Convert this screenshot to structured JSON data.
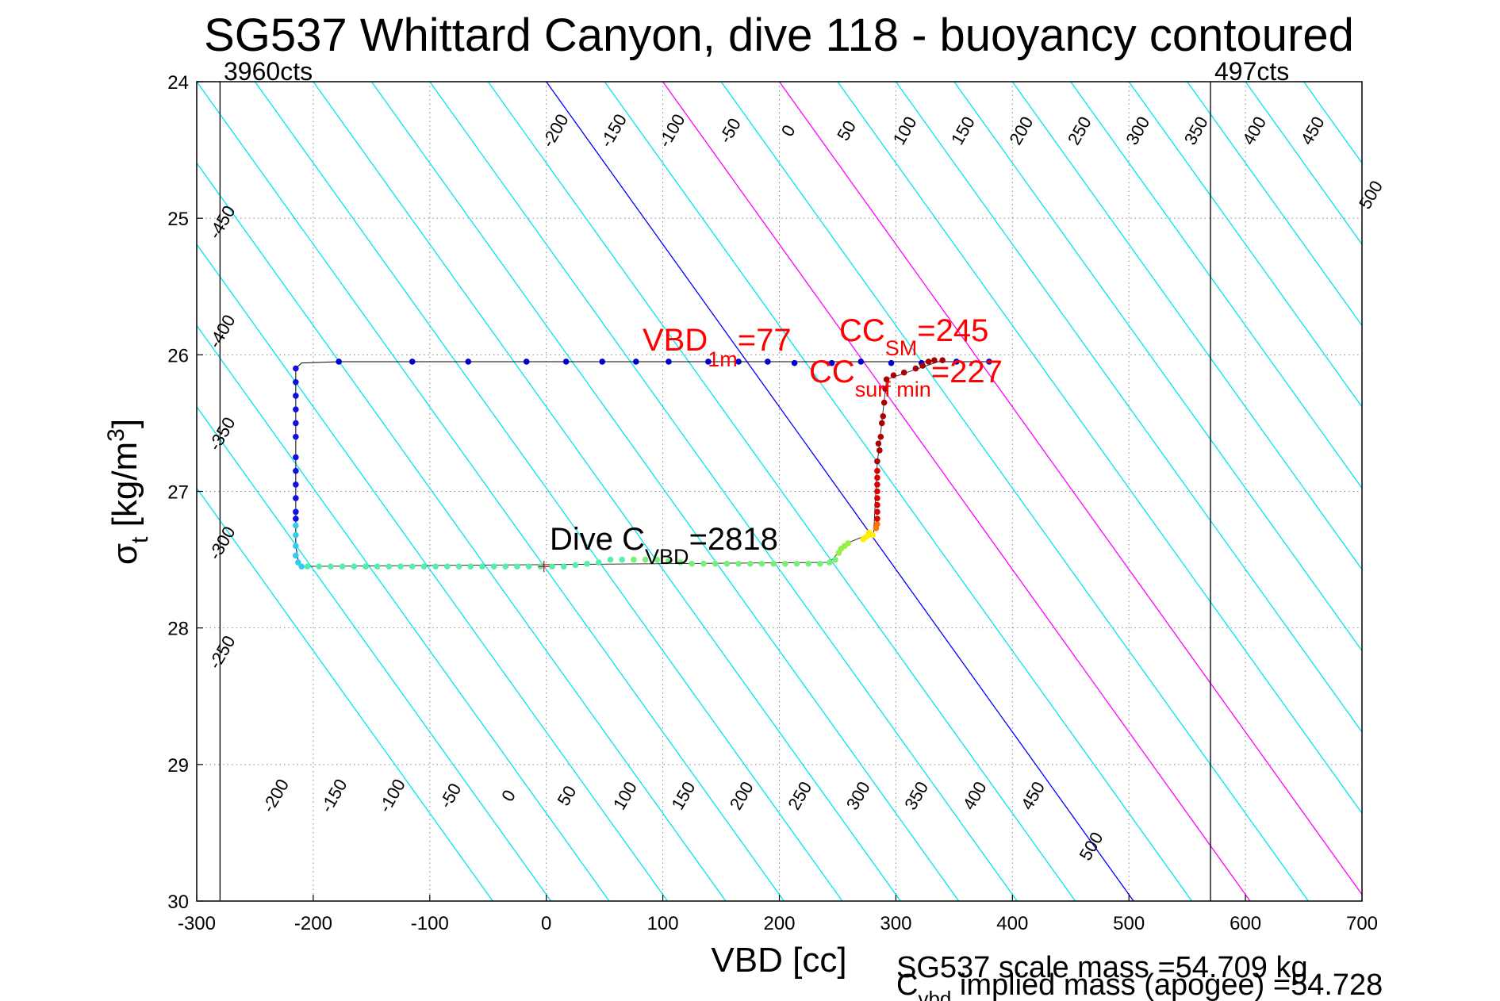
{
  "chart_data": {
    "type": "scatter",
    "title": "SG537 Whittard Canyon, dive 118 - buoyancy contoured",
    "xlabel": "VBD [cc]",
    "ylabel": {
      "main": "σ",
      "sub": "t",
      "units_pre": " [kg/m",
      "units_sup": "3",
      "units_post": "]"
    },
    "xlim": [
      -300,
      700
    ],
    "ylim": [
      24,
      30
    ],
    "y_reversed": true,
    "grid": true,
    "x_ticks": [
      "-300",
      "-200",
      "-100",
      "0",
      "100",
      "200",
      "300",
      "400",
      "500",
      "600",
      "700"
    ],
    "y_ticks": [
      "24",
      "25",
      "26",
      "27",
      "28",
      "29",
      "30"
    ],
    "counts": [
      {
        "label": "3960cts",
        "x": -280
      },
      {
        "label": "497cts",
        "x": 570
      }
    ],
    "contours": {
      "levels_top": [
        "-200",
        "-150",
        "-100",
        "-50",
        "0",
        "50",
        "100",
        "150",
        "200",
        "250",
        "300",
        "350",
        "400",
        "450",
        "500"
      ],
      "levels_left": [
        "-450",
        "-400",
        "-350",
        "-300",
        "-250"
      ],
      "levels_bottom": [
        "-200",
        "-150",
        "-100",
        "-50",
        "0",
        "50",
        "100",
        "150",
        "200",
        "250",
        "300",
        "350",
        "400",
        "450",
        "500"
      ],
      "color_default": "#00e5ee",
      "color_zero": "#0000ff",
      "color_cc": "#ff00ff"
    },
    "annotations": {
      "vbd1m": {
        "main": "VBD",
        "sub": "1m",
        "tail": "=77"
      },
      "ccsm": {
        "main": "CC",
        "sub": "SM",
        "tail": "=245"
      },
      "ccsurf": {
        "main": "CC",
        "sub": "surf min",
        "tail": "=227"
      },
      "divec": {
        "main": "Dive C",
        "sub": "VBD",
        "tail": "=2818"
      }
    },
    "footer": {
      "line1": "SG537 scale mass =54.709 kg",
      "line2_main": "C",
      "line2_sub": "vbd",
      "line2_tail": " implied mass (apogee) =54.728"
    },
    "series": [
      {
        "color": "#0000cc",
        "points": [
          [
            -178,
            26.05
          ],
          [
            -115,
            26.05
          ],
          [
            -67,
            26.05
          ],
          [
            -17,
            26.05
          ],
          [
            17,
            26.05
          ],
          [
            48,
            26.05
          ],
          [
            77,
            26.05
          ],
          [
            105,
            26.05
          ],
          [
            139,
            26.05
          ],
          [
            165,
            26.05
          ],
          [
            190,
            26.05
          ],
          [
            213,
            26.06
          ],
          [
            245,
            26.06
          ],
          [
            270,
            26.05
          ],
          [
            296,
            26.06
          ],
          [
            322,
            26.06
          ],
          [
            352,
            26.05
          ],
          [
            380,
            26.05
          ]
        ]
      },
      {
        "color": "#1010e0",
        "points": [
          [
            -215,
            26.1
          ],
          [
            -215,
            26.2
          ],
          [
            -215,
            26.3
          ],
          [
            -215,
            26.4
          ],
          [
            -215,
            26.5
          ],
          [
            -215,
            26.6
          ],
          [
            -215,
            26.75
          ],
          [
            -215,
            26.85
          ],
          [
            -215,
            26.95
          ],
          [
            -215,
            27.05
          ],
          [
            -215,
            27.15
          ],
          [
            -215,
            27.2
          ]
        ]
      },
      {
        "color": "#33ccee",
        "points": [
          [
            -215,
            27.25
          ],
          [
            -215,
            27.32
          ],
          [
            -215,
            27.4
          ],
          [
            -215,
            27.47
          ],
          [
            -213,
            27.52
          ],
          [
            -210,
            27.55
          ]
        ]
      },
      {
        "color": "#55eeaa",
        "points": [
          [
            -205,
            27.55
          ],
          [
            -195,
            27.55
          ],
          [
            -185,
            27.55
          ],
          [
            -175,
            27.55
          ],
          [
            -165,
            27.55
          ],
          [
            -155,
            27.55
          ],
          [
            -145,
            27.55
          ],
          [
            -135,
            27.55
          ],
          [
            -125,
            27.55
          ],
          [
            -115,
            27.55
          ],
          [
            -105,
            27.55
          ],
          [
            -95,
            27.55
          ],
          [
            -85,
            27.55
          ],
          [
            -75,
            27.55
          ],
          [
            -65,
            27.55
          ],
          [
            -55,
            27.55
          ],
          [
            -45,
            27.55
          ],
          [
            -35,
            27.55
          ],
          [
            -25,
            27.55
          ],
          [
            -15,
            27.55
          ],
          [
            -5,
            27.55
          ],
          [
            5,
            27.55
          ],
          [
            15,
            27.55
          ],
          [
            25,
            27.54
          ],
          [
            35,
            27.53
          ],
          [
            45,
            27.52
          ],
          [
            55,
            27.5
          ],
          [
            65,
            27.5
          ]
        ]
      },
      {
        "color": "#77ee77",
        "points": [
          [
            75,
            27.5
          ],
          [
            85,
            27.5
          ],
          [
            95,
            27.5
          ],
          [
            105,
            27.51
          ],
          [
            115,
            27.52
          ],
          [
            125,
            27.53
          ],
          [
            135,
            27.53
          ],
          [
            145,
            27.53
          ],
          [
            155,
            27.53
          ],
          [
            165,
            27.53
          ],
          [
            175,
            27.53
          ],
          [
            185,
            27.53
          ],
          [
            195,
            27.53
          ],
          [
            205,
            27.53
          ],
          [
            215,
            27.53
          ],
          [
            225,
            27.53
          ],
          [
            235,
            27.53
          ],
          [
            243,
            27.52
          ],
          [
            248,
            27.5
          ]
        ]
      },
      {
        "color": "#99ee44",
        "points": [
          [
            251,
            27.45
          ],
          [
            253,
            27.42
          ],
          [
            256,
            27.4
          ],
          [
            259,
            27.38
          ]
        ]
      },
      {
        "color": "#ffee00",
        "points": [
          [
            272,
            27.35
          ],
          [
            275,
            27.33
          ],
          [
            277,
            27.3
          ],
          [
            280,
            27.32
          ]
        ]
      },
      {
        "color": "#ff7700",
        "points": [
          [
            283,
            27.27
          ],
          [
            284,
            27.24
          ]
        ]
      },
      {
        "color": "#dd0000",
        "points": [
          [
            284,
            27.2
          ],
          [
            284,
            27.15
          ],
          [
            284,
            27.1
          ],
          [
            284,
            27.05
          ],
          [
            284,
            27.0
          ],
          [
            284,
            26.95
          ],
          [
            284,
            26.9
          ],
          [
            284,
            26.85
          ]
        ]
      },
      {
        "color": "#aa0000",
        "points": [
          [
            284,
            26.78
          ],
          [
            286,
            26.7
          ],
          [
            285,
            26.65
          ],
          [
            287,
            26.6
          ],
          [
            288,
            26.5
          ],
          [
            289,
            26.45
          ],
          [
            290,
            26.35
          ],
          [
            291,
            26.25
          ],
          [
            292,
            26.18
          ],
          [
            298,
            26.15
          ],
          [
            307,
            26.13
          ],
          [
            317,
            26.1
          ],
          [
            323,
            26.08
          ],
          [
            328,
            26.05
          ],
          [
            333,
            26.04
          ],
          [
            340,
            26.04
          ]
        ]
      }
    ]
  }
}
